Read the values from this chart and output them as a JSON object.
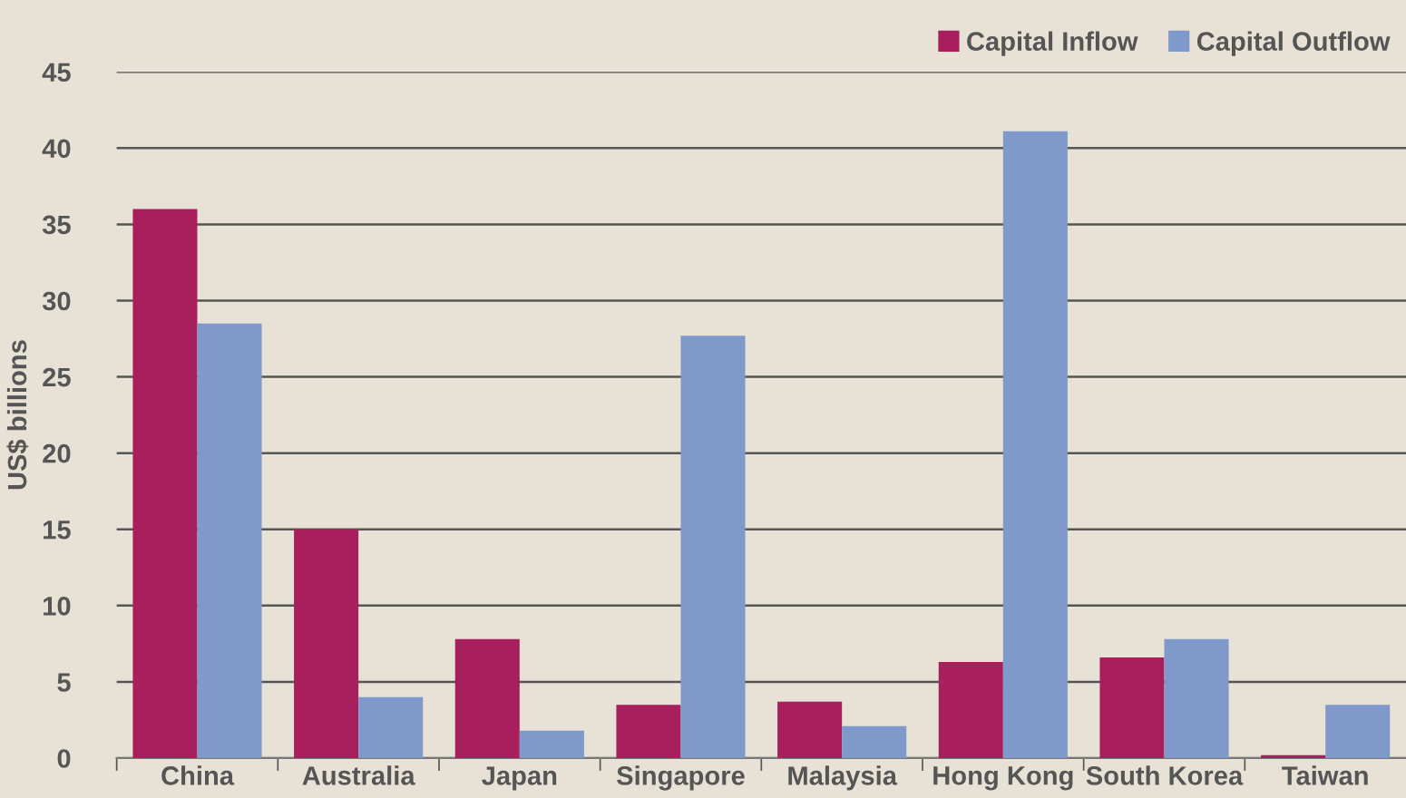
{
  "chart_data": {
    "type": "bar",
    "ylabel": "US$ billions",
    "categories": [
      "China",
      "Australia",
      "Japan",
      "Singapore",
      "Malaysia",
      "Hong Kong",
      "South Korea",
      "Taiwan"
    ],
    "series": [
      {
        "name": "Capital Inflow",
        "color": "#a81f5e",
        "values": [
          36,
          15,
          7.8,
          3.5,
          3.7,
          6.3,
          6.6,
          0.2
        ]
      },
      {
        "name": "Capital Outflow",
        "color": "#7f99cb",
        "values": [
          28.5,
          4,
          1.8,
          27.7,
          2.1,
          41.1,
          7.8,
          3.5
        ]
      }
    ],
    "ylim": [
      0,
      45
    ],
    "yticks": [
      0,
      5,
      10,
      15,
      20,
      25,
      30,
      35,
      40,
      45
    ],
    "grid": "y",
    "legend": "top right"
  }
}
